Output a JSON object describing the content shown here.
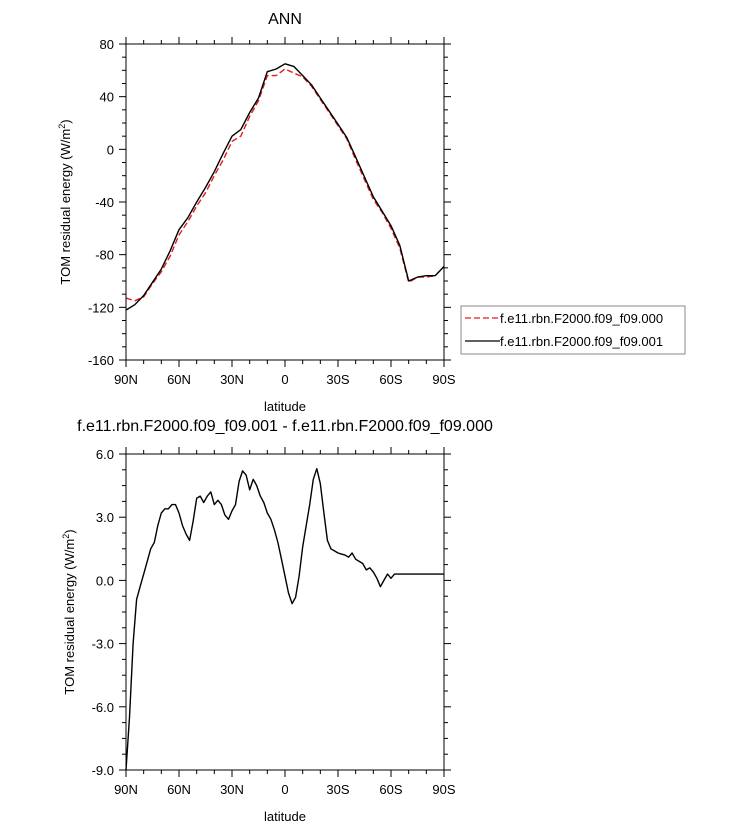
{
  "chart_data": [
    {
      "type": "line",
      "title": "ANN",
      "xlabel": "latitude",
      "ylabel": "TOM residual energy (W/m",
      "ylabel_sup": "2",
      "ylabel_close": ")",
      "xlim": [
        90,
        -90
      ],
      "ylim": [
        -160,
        80
      ],
      "x_ticks": [
        90,
        60,
        30,
        0,
        -30,
        -60,
        -90
      ],
      "x_tick_labels": [
        "90N",
        "60N",
        "30N",
        "0",
        "30S",
        "60S",
        "90S"
      ],
      "y_ticks": [
        80,
        40,
        0,
        -40,
        -80,
        -120,
        -160
      ],
      "y_tick_labels": [
        "80",
        "40",
        "0",
        "-40",
        "-80",
        "-120",
        "-160"
      ],
      "legend_position": "right",
      "series": [
        {
          "name": "f.e11.rbn.F2000.f09_f09.000",
          "color": "#e41a1c",
          "dash": "dashed",
          "x": [
            90,
            85,
            80,
            75,
            70,
            65,
            60,
            55,
            50,
            45,
            40,
            35,
            30,
            25,
            20,
            15,
            10,
            5,
            0,
            -5,
            -10,
            -15,
            -20,
            -25,
            -30,
            -35,
            -40,
            -45,
            -50,
            -55,
            -60,
            -65,
            -70,
            -75,
            -80,
            -85,
            -90
          ],
          "y": [
            -113,
            -115,
            -112,
            -102,
            -93,
            -81,
            -65,
            -55,
            -43,
            -33,
            -20,
            -8,
            6,
            10,
            25,
            37,
            56,
            56,
            61,
            58,
            55,
            48,
            38,
            28,
            18,
            8,
            -8,
            -23,
            -38,
            -48,
            -60,
            -75,
            -101,
            -97,
            -97,
            -96,
            -89
          ]
        },
        {
          "name": "f.e11.rbn.F2000.f09_f09.001",
          "color": "#000000",
          "dash": "solid",
          "x": [
            90,
            85,
            80,
            75,
            70,
            65,
            60,
            55,
            50,
            45,
            40,
            35,
            30,
            25,
            20,
            15,
            10,
            5,
            0,
            -5,
            -10,
            -15,
            -20,
            -25,
            -30,
            -35,
            -40,
            -45,
            -50,
            -55,
            -60,
            -65,
            -70,
            -75,
            -80,
            -85,
            -90
          ],
          "y": [
            -122,
            -118,
            -111,
            -101,
            -91,
            -77,
            -61,
            -52,
            -40,
            -29,
            -17,
            -3,
            10,
            15,
            28,
            39,
            59,
            61,
            65,
            63,
            56,
            49,
            39,
            29,
            19,
            9,
            -6,
            -21,
            -36,
            -47,
            -58,
            -73,
            -100,
            -97,
            -96,
            -96,
            -89
          ]
        }
      ]
    },
    {
      "type": "line",
      "title": "f.e11.rbn.F2000.f09_f09.001 - f.e11.rbn.F2000.f09_f09.000",
      "xlabel": "latitude",
      "ylabel": "TOM residual energy (W/m",
      "ylabel_sup": "2",
      "ylabel_close": ")",
      "xlim": [
        90,
        -90
      ],
      "ylim": [
        -9,
        6
      ],
      "x_ticks": [
        90,
        60,
        30,
        0,
        -30,
        -60,
        -90
      ],
      "x_tick_labels": [
        "90N",
        "60N",
        "30N",
        "0",
        "30S",
        "60S",
        "90S"
      ],
      "y_ticks": [
        6,
        3,
        0,
        -3,
        -6,
        -9
      ],
      "y_tick_labels": [
        "6.0",
        "3.0",
        "0.0",
        "-3.0",
        "-6.0",
        "-9.0"
      ],
      "series": [
        {
          "color": "#000000",
          "dash": "solid",
          "x": [
            90,
            88,
            86,
            84,
            82,
            80,
            78,
            76,
            74,
            72,
            70,
            68,
            66,
            64,
            62,
            60,
            58,
            56,
            54,
            52,
            50,
            48,
            46,
            44,
            42,
            40,
            38,
            36,
            34,
            32,
            30,
            28,
            26,
            24,
            22,
            20,
            18,
            16,
            14,
            12,
            10,
            8,
            6,
            4,
            2,
            0,
            -2,
            -4,
            -6,
            -8,
            -10,
            -12,
            -14,
            -16,
            -18,
            -20,
            -22,
            -24,
            -26,
            -28,
            -30,
            -32,
            -34,
            -36,
            -38,
            -40,
            -42,
            -44,
            -46,
            -48,
            -50,
            -52,
            -54,
            -56,
            -58,
            -60,
            -62,
            -64,
            -66,
            -68,
            -70,
            -72,
            -74,
            -76,
            -78,
            -80,
            -82,
            -84,
            -86,
            -88,
            -90
          ],
          "y": [
            -9.0,
            -6.5,
            -3.0,
            -0.9,
            -0.3,
            0.3,
            0.9,
            1.5,
            1.8,
            2.6,
            3.2,
            3.4,
            3.4,
            3.6,
            3.6,
            3.2,
            2.6,
            2.2,
            1.9,
            2.8,
            3.9,
            4.0,
            3.7,
            4.0,
            4.2,
            3.6,
            3.8,
            3.6,
            3.1,
            2.9,
            3.3,
            3.6,
            4.7,
            5.2,
            5.0,
            4.3,
            4.8,
            4.5,
            4.0,
            3.7,
            3.2,
            2.9,
            2.4,
            1.8,
            1.0,
            0.2,
            -0.6,
            -1.1,
            -0.8,
            0.2,
            1.6,
            2.6,
            3.6,
            4.8,
            5.3,
            4.6,
            3.2,
            1.9,
            1.5,
            1.4,
            1.3,
            1.25,
            1.2,
            1.1,
            1.3,
            1.0,
            0.9,
            0.8,
            0.5,
            0.6,
            0.4,
            0.1,
            -0.3,
            0.0,
            0.3,
            0.1,
            0.3,
            0.3,
            0.3,
            0.3,
            0.3,
            0.3,
            0.3,
            0.3,
            0.3,
            0.3,
            0.3,
            0.3,
            0.3,
            0.3,
            0.3
          ]
        }
      ]
    }
  ]
}
